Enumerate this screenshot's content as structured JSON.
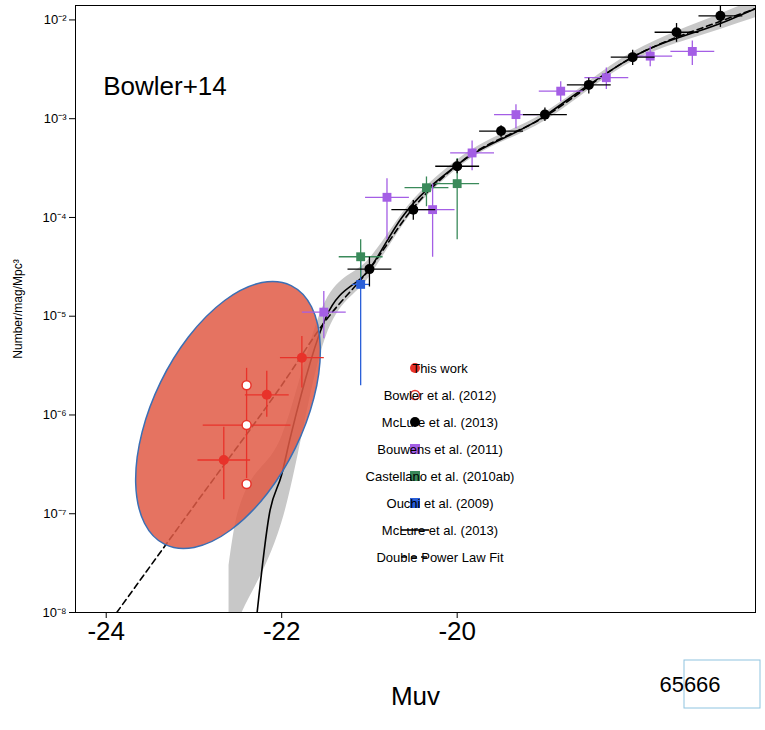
{
  "chart_data": {
    "type": "scatter",
    "xlabel": "Muv",
    "ylabel": "Number/mag/Mpc³",
    "log": "y",
    "xlim": [
      -24.35,
      -16.6
    ],
    "ylim": [
      1e-08,
      0.014
    ],
    "xticks": [
      -24,
      -22,
      -20
    ],
    "yticks": [
      {
        "value": 1e-08,
        "label": "10⁻⁸"
      },
      {
        "value": 1e-07,
        "label": "10⁻⁷"
      },
      {
        "value": 1e-06,
        "label": "10⁻⁶"
      },
      {
        "value": 1e-05,
        "label": "10⁻⁵"
      },
      {
        "value": 0.0001,
        "label": "10⁻⁴"
      },
      {
        "value": 0.001,
        "label": "10⁻³"
      },
      {
        "value": 0.01,
        "label": "10⁻²"
      }
    ],
    "grid": false,
    "legend": "bottom-right",
    "annotations": [
      "Bowler+14",
      "65666"
    ],
    "series": [
      {
        "name": "This work",
        "type": "scatter",
        "marker": "circle",
        "color": "#e8322a",
        "x": [
          -22.66,
          -22.17,
          -21.77
        ],
        "values": [
          3.5e-07,
          1.6e-06,
          3.8e-06
        ],
        "xerr": [
          0.3,
          0.25,
          0.25
        ],
        "ylow": [
          1.4e-07,
          9.6e-07,
          1.9e-06
        ],
        "yhigh": [
          7.6e-07,
          2.8e-06,
          6.3e-06
        ]
      },
      {
        "name": "Bowler et al. (2012)",
        "type": "scatter",
        "marker": "open_circle",
        "color": "#e8322a",
        "x": [
          -22.4,
          -22.4,
          -22.4
        ],
        "values": [
          2e-06,
          7.9e-07,
          2e-07
        ],
        "xerr": [
          null,
          0.5,
          null
        ],
        "ylow": [
          null,
          2.3e-07,
          null
        ],
        "yhigh": [
          null,
          3e-06,
          null
        ]
      },
      {
        "name": "McLure et al. (2013)",
        "type": "scatter",
        "marker": "circle",
        "color": "#000000",
        "x": [
          -21.0,
          -20.5,
          -20.0,
          -19.5,
          -19.0,
          -18.5,
          -18.0,
          -17.5,
          -17.0
        ],
        "values": [
          3e-05,
          0.00012,
          0.00033,
          0.00075,
          0.0011,
          0.0022,
          0.0042,
          0.0075,
          0.011
        ],
        "xerr": [
          0.25,
          0.25,
          0.25,
          0.25,
          0.25,
          0.25,
          0.25,
          0.25,
          0.25
        ],
        "ylow": [
          2e-05,
          9.5e-05,
          0.00028,
          0.00065,
          0.00095,
          0.0018,
          0.0035,
          0.006,
          0.0085
        ],
        "yhigh": [
          4e-05,
          0.00015,
          0.00039,
          0.00086,
          0.0013,
          0.0026,
          0.005,
          0.0093,
          0.014
        ]
      },
      {
        "name": "Bouwens et al. (2011)",
        "type": "scatter",
        "marker": "square",
        "color": "#a45ee5",
        "x": [
          -21.52,
          -20.8,
          -20.28,
          -19.83,
          -19.33,
          -18.82,
          -18.3,
          -17.8,
          -17.32
        ],
        "values": [
          1.1e-05,
          0.00016,
          0.00012,
          0.00045,
          0.0011,
          0.0019,
          0.0026,
          0.0043,
          0.0048
        ],
        "xerr": [
          0.25,
          0.25,
          0.25,
          0.25,
          0.25,
          0.25,
          0.25,
          0.25,
          0.25
        ],
        "ylow": [
          6e-06,
          6e-05,
          4e-05,
          0.0003,
          0.0008,
          0.0015,
          0.002,
          0.0034,
          0.0035
        ],
        "yhigh": [
          1.8e-05,
          0.00025,
          0.00022,
          0.0006,
          0.0014,
          0.0024,
          0.0033,
          0.0054,
          0.0062
        ]
      },
      {
        "name": "Castellano et al. (2010ab)",
        "type": "scatter",
        "marker": "square",
        "color": "#3a8a5a",
        "x": [
          -21.1,
          -20.35,
          -20.0
        ],
        "values": [
          4e-05,
          0.0002,
          0.00022
        ],
        "xerr": [
          0.25,
          0.25,
          0.25
        ],
        "ylow": [
          2.5e-05,
          0.00013,
          6e-05
        ],
        "yhigh": [
          6e-05,
          0.00026,
          0.0004
        ]
      },
      {
        "name": "Ouchi et al. (2009)",
        "type": "scatter",
        "marker": "square",
        "color": "#2a5fd8",
        "x": [
          -21.1
        ],
        "values": [
          2.1e-05
        ],
        "xerr": [
          0.1
        ],
        "ylow": [
          2e-06
        ],
        "yhigh": [
          4e-05
        ]
      },
      {
        "name": "McLure et al. (2013)",
        "type": "line",
        "line_style": "solid",
        "color": "#000000",
        "x": [
          -22.28,
          -22.14,
          -22.0,
          -21.9,
          -21.49,
          -21.0,
          -20.63,
          -20.0,
          -19.05,
          -18.5,
          -18.0,
          -16.9,
          -16.6
        ],
        "values": [
          1e-08,
          1e-07,
          2.5e-07,
          6e-07,
          1e-05,
          3e-05,
          0.0001,
          0.00034,
          0.001,
          0.0022,
          0.0042,
          0.01,
          0.013
        ],
        "band": {
          "color": "#c8c8c8",
          "x": [
            -22.6,
            -22.5,
            -22.0,
            -21.5,
            -21.0,
            -20.5,
            -20.0,
            -19.0,
            -18.0,
            -17.0,
            -16.6
          ],
          "lower": [
            5e-09,
            8e-09,
            8e-08,
            6e-06,
            2.5e-05,
            0.000115,
            0.00031,
            0.00095,
            0.0038,
            0.008,
            0.0105
          ],
          "upper": [
            3e-08,
            1e-07,
            6e-07,
            1.4e-05,
            3.8e-05,
            0.00015,
            0.00038,
            0.00115,
            0.0047,
            0.0115,
            0.016
          ]
        }
      },
      {
        "name": "Double Power Law Fit",
        "type": "line",
        "line_style": "dashed",
        "color": "#000000",
        "x": [
          -23.88,
          -23.0,
          -22.0,
          -21.5,
          -21.0,
          -20.5,
          -20.0,
          -19.0,
          -18.0,
          -17.0,
          -16.6
        ],
        "values": [
          1e-08,
          1.2e-07,
          2e-06,
          9e-06,
          3e-05,
          0.000125,
          0.00034,
          0.00105,
          0.0042,
          0.0097,
          0.013
        ]
      }
    ]
  }
}
